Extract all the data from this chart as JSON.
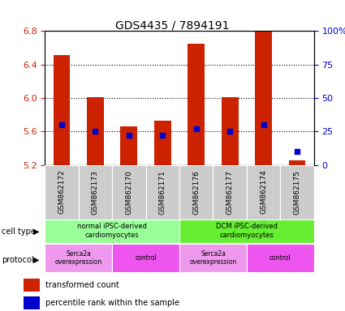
{
  "title": "GDS4435 / 7894191",
  "samples": [
    "GSM862172",
    "GSM862173",
    "GSM862170",
    "GSM862171",
    "GSM862176",
    "GSM862177",
    "GSM862174",
    "GSM862175"
  ],
  "transformed_counts": [
    6.51,
    6.01,
    5.66,
    5.73,
    6.65,
    6.01,
    6.8,
    5.25
  ],
  "percentile_ranks": [
    30,
    25,
    22,
    22,
    27,
    25,
    30,
    10
  ],
  "ylim": [
    5.2,
    6.8
  ],
  "y_ticks_left": [
    5.2,
    5.6,
    6.0,
    6.4,
    6.8
  ],
  "y_ticks_right": [
    0,
    25,
    50,
    75,
    100
  ],
  "bar_color": "#cc2200",
  "dot_color": "#0000cc",
  "bar_bottom": 5.2,
  "cell_type_groups": [
    {
      "label": "normal iPSC-derived\ncardiomyocytes",
      "start": 0,
      "end": 4,
      "color": "#99ff99"
    },
    {
      "label": "DCM iPSC-derived\ncardiomyocytes",
      "start": 4,
      "end": 8,
      "color": "#66ee33"
    }
  ],
  "protocol_groups": [
    {
      "label": "Serca2a\noverexpression",
      "start": 0,
      "end": 2,
      "color": "#ee99ee"
    },
    {
      "label": "control",
      "start": 2,
      "end": 4,
      "color": "#ee55ee"
    },
    {
      "label": "Serca2a\noverexpression",
      "start": 4,
      "end": 6,
      "color": "#ee99ee"
    },
    {
      "label": "control",
      "start": 6,
      "end": 8,
      "color": "#ee55ee"
    }
  ],
  "legend_red_label": "transformed count",
  "legend_blue_label": "percentile rank within the sample",
  "cell_type_label": "cell type",
  "protocol_label": "protocol",
  "left_axis_color": "#cc2200",
  "right_axis_color": "#0000cc",
  "grid_color": "#000000",
  "label_bg": "#cccccc"
}
